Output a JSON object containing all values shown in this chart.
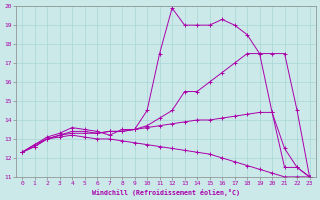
{
  "xlabel": "Windchill (Refroidissement éolien,°C)",
  "background_color": "#cbe9e9",
  "grid_color": "#a8d5d5",
  "line_color": "#aa00aa",
  "x": [
    0,
    1,
    2,
    3,
    4,
    5,
    6,
    7,
    8,
    9,
    10,
    11,
    12,
    13,
    14,
    15,
    16,
    17,
    18,
    19,
    20,
    21,
    22,
    23
  ],
  "series": [
    [
      12.3,
      12.7,
      13.1,
      13.3,
      13.6,
      13.5,
      13.4,
      13.2,
      13.5,
      13.5,
      14.5,
      17.5,
      19.9,
      19.0,
      19.0,
      19.0,
      19.3,
      19.0,
      18.5,
      17.5,
      14.4,
      11.5,
      11.5,
      11.0
    ],
    [
      12.3,
      12.7,
      13.0,
      13.2,
      13.4,
      13.4,
      13.3,
      13.4,
      13.4,
      13.5,
      13.7,
      14.1,
      14.5,
      15.5,
      15.5,
      16.0,
      16.5,
      17.0,
      17.5,
      17.5,
      17.5,
      17.5,
      14.5,
      11.0
    ],
    [
      12.3,
      12.6,
      13.0,
      13.2,
      13.3,
      13.3,
      13.3,
      13.4,
      13.4,
      13.5,
      13.6,
      13.7,
      13.8,
      13.9,
      14.0,
      14.0,
      14.1,
      14.2,
      14.3,
      14.4,
      14.4,
      12.5,
      11.5,
      11.0
    ],
    [
      12.3,
      12.6,
      13.0,
      13.1,
      13.2,
      13.1,
      13.0,
      13.0,
      12.9,
      12.8,
      12.7,
      12.6,
      12.5,
      12.4,
      12.3,
      12.2,
      12.0,
      11.8,
      11.6,
      11.4,
      11.2,
      11.0,
      11.0,
      11.0
    ]
  ],
  "ylim": [
    11,
    20
  ],
  "xlim": [
    -0.5,
    23.5
  ],
  "yticks": [
    11,
    12,
    13,
    14,
    15,
    16,
    17,
    18,
    19,
    20
  ],
  "xticks": [
    0,
    1,
    2,
    3,
    4,
    5,
    6,
    7,
    8,
    9,
    10,
    11,
    12,
    13,
    14,
    15,
    16,
    17,
    18,
    19,
    20,
    21,
    22,
    23
  ]
}
